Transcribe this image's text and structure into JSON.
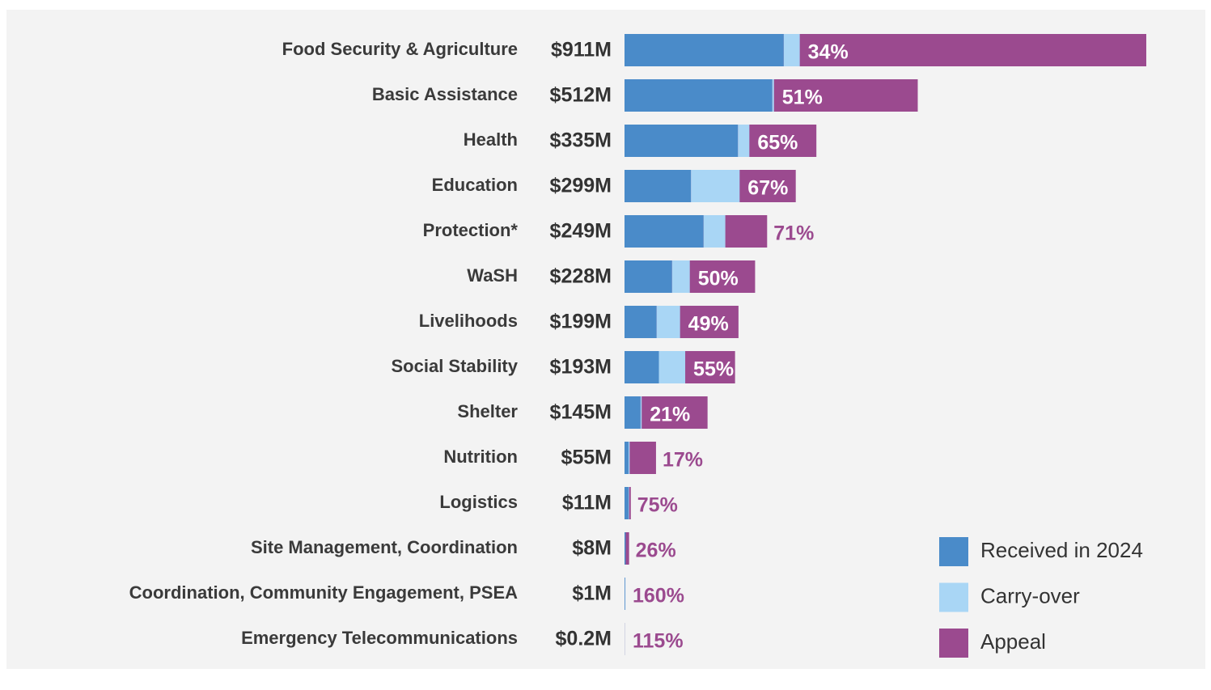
{
  "chart_data": {
    "type": "bar",
    "categories": [
      "Food Security & Agriculture",
      "Basic Assistance",
      "Health",
      "Education",
      "Protection*",
      "WaSH",
      "Livelihoods",
      "Social Stability",
      "Shelter",
      "Nutrition",
      "Logistics",
      "Site Management, Coordination",
      "Coordination, Community Engagement, PSEA",
      "Emergency Telecommunications"
    ],
    "series": [
      {
        "name": "Received in 2024",
        "color": "#4a8bc9",
        "values": [
          278,
          258,
          198,
          116,
          138,
          83,
          56,
          60,
          28,
          7,
          7,
          2,
          1.2,
          0.2
        ]
      },
      {
        "name": "Carry-over",
        "color": "#a9d6f5",
        "values": [
          28,
          3,
          20,
          85,
          38,
          31,
          41,
          46,
          2,
          2,
          1,
          0,
          0.4,
          0.03
        ]
      },
      {
        "name": "Appeal",
        "color": "#9b4a8f",
        "values": [
          911,
          512,
          335,
          299,
          249,
          228,
          199,
          193,
          145,
          55,
          11,
          8,
          1,
          0.2
        ],
        "value_labels": [
          "$911M",
          "$512M",
          "$335M",
          "$299M",
          "$249M",
          "$228M",
          "$199M",
          "$193M",
          "$145M",
          "$55M",
          "$11M",
          "$8M",
          "$1M",
          "$0.2M"
        ]
      }
    ],
    "funded_percent": {
      "values": [
        34,
        51,
        65,
        67,
        71,
        50,
        49,
        55,
        21,
        17,
        75,
        26,
        160,
        115
      ],
      "value_labels": [
        "34%",
        "51%",
        "65%",
        "67%",
        "71%",
        "50%",
        "49%",
        "55%",
        "21%",
        "17%",
        "75%",
        "26%",
        "160%",
        "115%"
      ]
    }
  }
}
